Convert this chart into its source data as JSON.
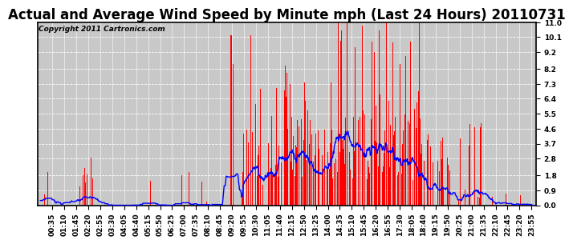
{
  "title": "Actual and Average Wind Speed by Minute mph (Last 24 Hours) 20110731",
  "copyright": "Copyright 2011 Cartronics.com",
  "ylim": [
    0.0,
    11.0
  ],
  "yticks": [
    0.0,
    0.9,
    1.8,
    2.8,
    3.7,
    4.6,
    5.5,
    6.4,
    7.3,
    8.2,
    9.2,
    10.1,
    11.0
  ],
  "bar_color": "#ff0000",
  "line_color": "#0000ff",
  "background_color": "#c8c8c8",
  "grid_color": "#ffffff",
  "title_fontsize": 12,
  "copyright_fontsize": 6.5,
  "tick_fontsize": 6.5,
  "n_minutes": 1440
}
